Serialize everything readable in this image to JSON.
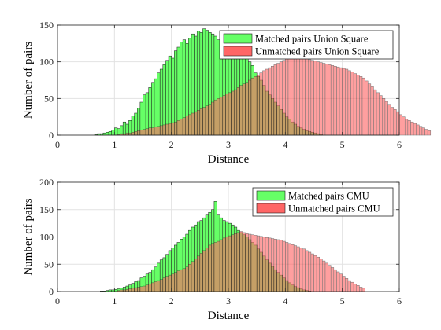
{
  "chart_data": [
    {
      "type": "bar",
      "xlabel": "Distance",
      "ylabel": "Number of pairs",
      "xlim": [
        0,
        6
      ],
      "ylim": [
        0,
        150
      ],
      "xticks": [
        "0",
        "1",
        "2",
        "3",
        "4",
        "5",
        "6"
      ],
      "yticks": [
        "0",
        "50",
        "100",
        "150"
      ],
      "grid": true,
      "legend_position": "top-right",
      "bin_width": 0.05,
      "series": [
        {
          "name": "Matched pairs Union Square",
          "color": "#66ff66",
          "x_start": 0.65,
          "values": [
            1,
            2,
            2,
            3,
            4,
            5,
            7,
            10,
            9,
            13,
            18,
            15,
            20,
            26,
            30,
            37,
            45,
            55,
            58,
            65,
            72,
            77,
            85,
            90,
            96,
            102,
            108,
            105,
            115,
            120,
            127,
            130,
            125,
            132,
            138,
            135,
            142,
            140,
            145,
            143,
            140,
            138,
            135,
            130,
            125,
            120,
            115,
            118,
            120,
            115,
            110,
            105,
            108,
            112,
            100,
            95,
            85,
            80,
            75,
            68,
            60,
            55,
            50,
            45,
            40,
            35,
            30,
            25,
            22,
            18,
            15,
            12,
            10,
            8,
            6,
            5,
            4,
            3,
            2,
            1
          ]
        },
        {
          "name": "Unmatched pairs Union Square",
          "color": "#ff6666",
          "x_start": 1.05,
          "values": [
            1,
            2,
            2,
            3,
            3,
            4,
            5,
            6,
            7,
            8,
            9,
            10,
            10,
            11,
            12,
            13,
            14,
            15,
            16,
            17,
            18,
            20,
            22,
            24,
            26,
            28,
            30,
            32,
            34,
            36,
            38,
            40,
            42,
            45,
            48,
            50,
            52,
            54,
            56,
            58,
            60,
            62,
            65,
            68,
            70,
            72,
            75,
            78,
            80,
            82,
            85,
            88,
            90,
            92,
            94,
            96,
            98,
            100,
            102,
            104,
            106,
            108,
            110,
            108,
            106,
            105,
            104,
            103,
            102,
            101,
            100,
            99,
            98,
            97,
            96,
            95,
            94,
            93,
            92,
            91,
            90,
            88,
            86,
            84,
            82,
            80,
            78,
            74,
            70,
            66,
            62,
            58,
            54,
            50,
            46,
            42,
            38,
            35,
            32,
            28,
            25,
            22,
            20,
            18,
            16,
            14,
            12,
            10,
            8,
            6
          ]
        }
      ]
    },
    {
      "type": "bar",
      "xlabel": "Distance",
      "ylabel": "Number of pairs",
      "xlim": [
        0,
        6
      ],
      "ylim": [
        0,
        200
      ],
      "xticks": [
        "0",
        "1",
        "2",
        "3",
        "4",
        "5",
        "6"
      ],
      "yticks": [
        "0",
        "50",
        "100",
        "150",
        "200"
      ],
      "grid": true,
      "legend_position": "top-right",
      "bin_width": 0.05,
      "series": [
        {
          "name": "Matched pairs CMU",
          "color": "#66ff66",
          "x_start": 0.75,
          "values": [
            1,
            1,
            2,
            3,
            3,
            4,
            5,
            6,
            8,
            10,
            12,
            15,
            18,
            20,
            25,
            28,
            32,
            35,
            40,
            45,
            52,
            58,
            62,
            68,
            75,
            80,
            85,
            90,
            96,
            100,
            105,
            112,
            118,
            122,
            128,
            130,
            135,
            140,
            145,
            150,
            165,
            140,
            135,
            130,
            128,
            125,
            122,
            118,
            112,
            108,
            104,
            100,
            95,
            90,
            85,
            78,
            72,
            65,
            58,
            52,
            46,
            40,
            35,
            30,
            25,
            20,
            16,
            12,
            9,
            7,
            5,
            3,
            2,
            1
          ]
        },
        {
          "name": "Unmatched pairs CMU",
          "color": "#ff6666",
          "x_start": 1.05,
          "values": [
            2,
            3,
            3,
            4,
            5,
            6,
            7,
            8,
            9,
            10,
            12,
            14,
            16,
            18,
            20,
            22,
            25,
            28,
            30,
            32,
            35,
            38,
            40,
            42,
            45,
            50,
            55,
            60,
            65,
            70,
            75,
            80,
            85,
            88,
            90,
            92,
            95,
            98,
            100,
            102,
            104,
            106,
            108,
            110,
            108,
            106,
            105,
            104,
            103,
            102,
            101,
            100,
            99,
            98,
            97,
            96,
            95,
            94,
            92,
            90,
            88,
            86,
            84,
            82,
            80,
            78,
            75,
            72,
            69,
            66,
            63,
            60,
            56,
            52,
            48,
            44,
            40,
            36,
            32,
            28,
            24,
            20,
            17,
            14,
            11,
            8,
            6
          ]
        }
      ]
    }
  ]
}
